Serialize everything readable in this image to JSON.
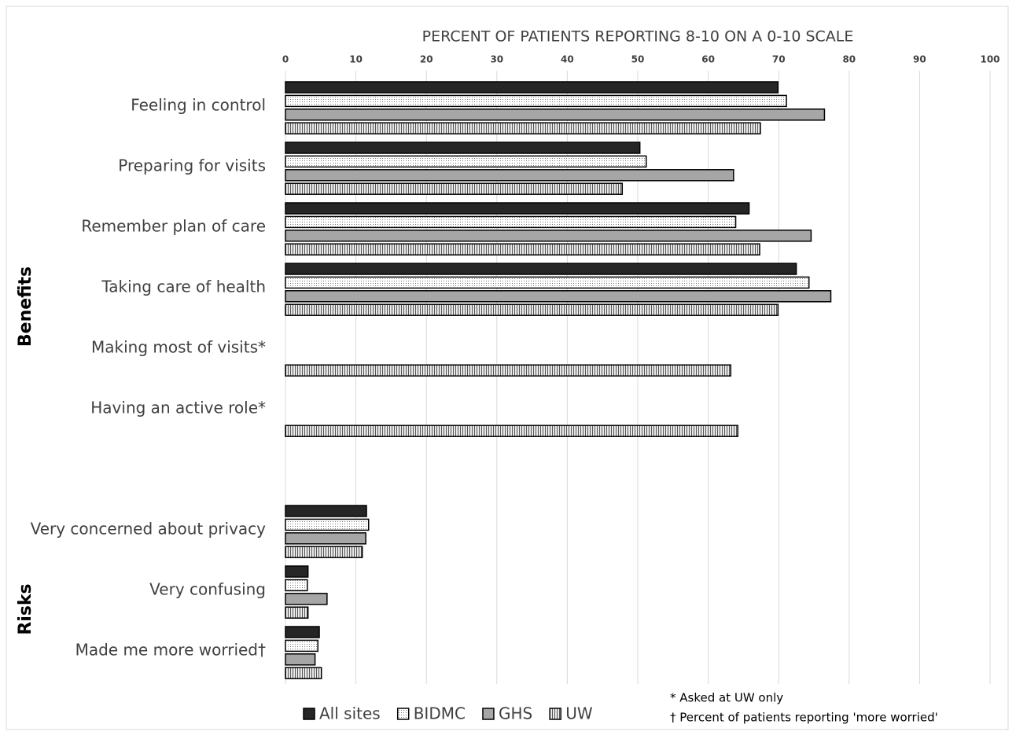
{
  "chart_data": {
    "type": "hbar",
    "x_label": "PERCENT OF PATIENTS REPORTING 8-10 ON A 0-10 SCALE",
    "categories": [
      "Feeling in control",
      "Preparing for visits",
      "Remember plan of care",
      "Taking care of health",
      "Making most of visits*",
      "Having an active role*",
      null,
      "Very concerned about privacy",
      "Very confusing",
      "Made me more worried†"
    ],
    "series": [
      {
        "name": "All sites",
        "color": "#262626",
        "pattern": "solid",
        "values": [
          69.9,
          50.3,
          65.8,
          72.5,
          null,
          null,
          null,
          11.5,
          3.2,
          4.8
        ]
      },
      {
        "name": "BIDMC",
        "color": "#ffffff",
        "pattern": "dots",
        "values": [
          71.1,
          51.2,
          63.9,
          74.3,
          null,
          null,
          null,
          11.8,
          3.1,
          4.6
        ]
      },
      {
        "name": "GHS",
        "color": "#a6a6a6",
        "pattern": "solid",
        "values": [
          76.5,
          63.6,
          74.6,
          77.4,
          null,
          null,
          null,
          11.4,
          5.9,
          4.2
        ]
      },
      {
        "name": "UW",
        "color": "#d9d9d9",
        "pattern": "stripes",
        "values": [
          67.4,
          47.8,
          67.3,
          69.9,
          63.2,
          64.2,
          null,
          10.9,
          3.2,
          5.1
        ]
      }
    ],
    "xlim": [
      0,
      100
    ],
    "xticks": [
      0,
      10,
      20,
      30,
      40,
      50,
      60,
      70,
      80,
      90,
      100
    ],
    "grid": true,
    "legend": "bottom",
    "group_labels": [
      "Benefits",
      "Risks"
    ],
    "notes": [
      "* Asked at UW only",
      "† Percent of patients reporting 'more worried'"
    ]
  }
}
